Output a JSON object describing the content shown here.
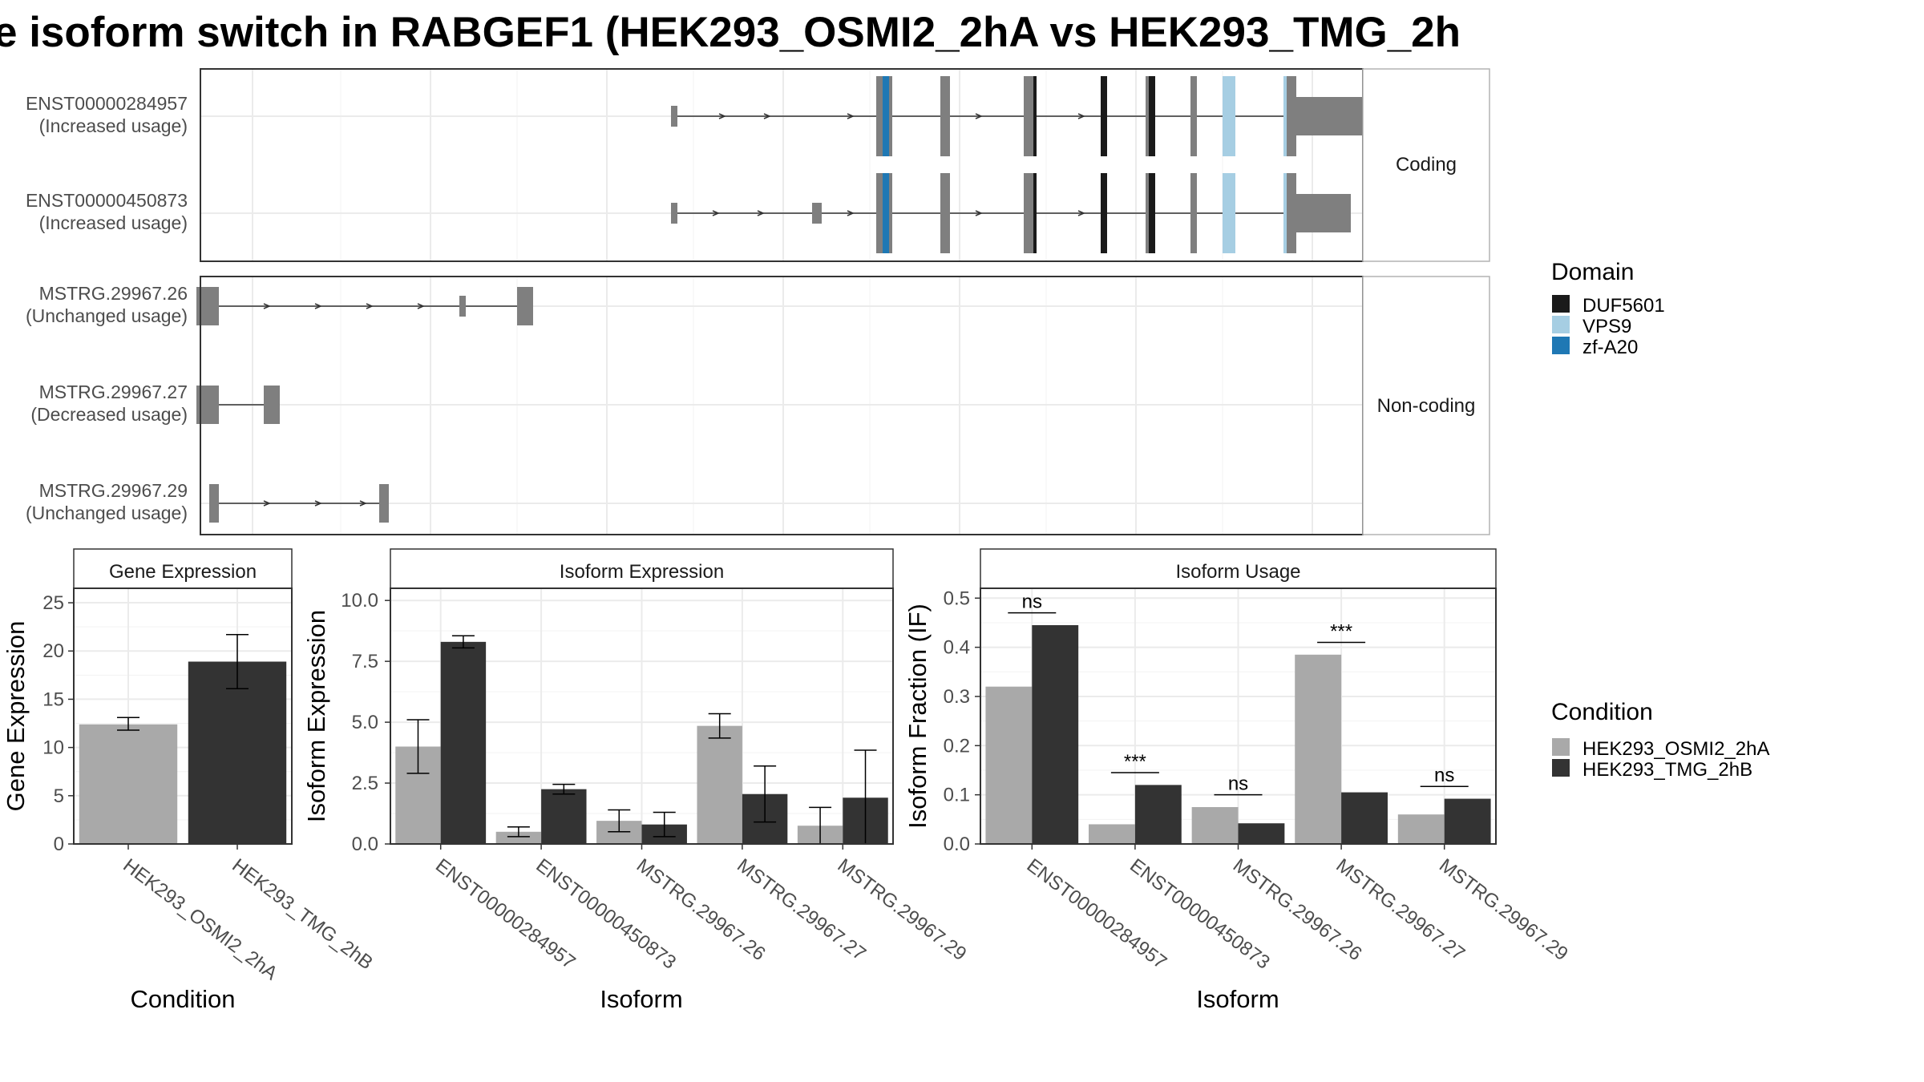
{
  "title": "e isoform switch in RABGEF1 (HEK293_OSMI2_2hA vs HEK293_TMG_2h",
  "colors": {
    "exon": "#7f7f7f",
    "DUF5601": "#1a1a1a",
    "VPS9": "#a6cee3",
    "zf-A20": "#1f78b4",
    "HEK293_OSMI2_2hA": "#a9a9a9",
    "HEK293_TMG_2hB": "#333333"
  },
  "structure": {
    "coding_label": "Coding",
    "noncoding_label": "Non-coding",
    "transcripts": [
      {
        "id": "ENST00000284957",
        "usage": "(Increased usage)",
        "group": "coding",
        "exons": [
          [
            0.0,
            0.01
          ],
          [
            0.32,
            0.345
          ],
          [
            0.42,
            0.435
          ],
          [
            0.55,
            0.565
          ],
          [
            0.67,
            0.68
          ],
          [
            0.74,
            0.755
          ],
          [
            0.81,
            0.82
          ],
          [
            0.955,
            0.975
          ],
          [
            0.975,
            1.09
          ]
        ],
        "exon_heights": [
          "s",
          "l",
          "l",
          "l",
          "l",
          "l",
          "l",
          "l",
          "m"
        ],
        "domains": [
          [
            0.33,
            0.34,
            "zf-A20"
          ],
          [
            0.565,
            0.57,
            "DUF5601"
          ],
          [
            0.67,
            0.68,
            "DUF5601"
          ],
          [
            0.745,
            0.755,
            "DUF5601"
          ],
          [
            0.86,
            0.88,
            "VPS9"
          ],
          [
            0.955,
            0.96,
            "VPS9"
          ]
        ],
        "arrows": [
          0.08,
          0.15,
          0.28,
          0.48,
          0.64
        ]
      },
      {
        "id": "ENST00000450873",
        "usage": "(Increased usage)",
        "group": "coding",
        "exons": [
          [
            0.0,
            0.01
          ],
          [
            0.22,
            0.235
          ],
          [
            0.32,
            0.345
          ],
          [
            0.42,
            0.435
          ],
          [
            0.55,
            0.565
          ],
          [
            0.67,
            0.68
          ],
          [
            0.74,
            0.755
          ],
          [
            0.81,
            0.82
          ],
          [
            0.955,
            0.975
          ],
          [
            0.975,
            1.06
          ]
        ],
        "exon_heights": [
          "s",
          "s",
          "l",
          "l",
          "l",
          "l",
          "l",
          "l",
          "l",
          "m"
        ],
        "domains": [
          [
            0.33,
            0.34,
            "zf-A20"
          ],
          [
            0.565,
            0.57,
            "DUF5601"
          ],
          [
            0.67,
            0.68,
            "DUF5601"
          ],
          [
            0.745,
            0.755,
            "DUF5601"
          ],
          [
            0.86,
            0.88,
            "VPS9"
          ],
          [
            0.955,
            0.96,
            "VPS9"
          ]
        ],
        "arrows": [
          0.07,
          0.14,
          0.28,
          0.48,
          0.64
        ]
      },
      {
        "id": "MSTRG.29967.26",
        "usage": "(Unchanged usage)",
        "group": "noncoding",
        "exons": [
          [
            -0.74,
            -0.705
          ],
          [
            -0.33,
            -0.32
          ],
          [
            -0.24,
            -0.215
          ]
        ],
        "exon_heights": [
          "m",
          "s",
          "m"
        ],
        "domains": [],
        "arrows": [
          -0.63,
          -0.55,
          -0.47,
          -0.39
        ]
      },
      {
        "id": "MSTRG.29967.27",
        "usage": "(Decreased usage)",
        "group": "noncoding",
        "exons": [
          [
            -0.74,
            -0.705
          ],
          [
            -0.635,
            -0.61
          ]
        ],
        "exon_heights": [
          "m",
          "m"
        ],
        "domains": [],
        "arrows": []
      },
      {
        "id": "MSTRG.29967.29",
        "usage": "(Unchanged usage)",
        "group": "noncoding",
        "exons": [
          [
            -0.72,
            -0.705
          ],
          [
            -0.455,
            -0.44
          ]
        ],
        "exon_heights": [
          "m",
          "m"
        ],
        "domains": [],
        "arrows": [
          -0.63,
          -0.55,
          -0.48
        ]
      }
    ]
  },
  "legend": {
    "domain_title": "Domain",
    "domains": [
      "DUF5601",
      "VPS9",
      "zf-A20"
    ],
    "condition_title": "Condition",
    "conditions": [
      "HEK293_OSMI2_2hA",
      "HEK293_TMG_2hB"
    ]
  },
  "chart_data": [
    {
      "type": "bar",
      "title": "Gene Expression",
      "xlabel": "Condition",
      "ylabel": "Gene Expression",
      "ylim": [
        0,
        26.5
      ],
      "yticks": [
        0,
        5,
        10,
        15,
        20,
        25
      ],
      "categories": [
        "HEK293_OSMI2_2hA",
        "HEK293_TMG_2hB"
      ],
      "series": [
        {
          "name": "HEK293_OSMI2_2hA",
          "values": [
            12.4,
            null
          ],
          "error": [
            [
              11.8,
              13.1
            ],
            null
          ]
        },
        {
          "name": "HEK293_TMG_2hB",
          "values": [
            null,
            18.9
          ],
          "error": [
            null,
            [
              16.1,
              21.7
            ]
          ]
        }
      ]
    },
    {
      "type": "bar",
      "title": "Isoform Expression",
      "xlabel": "Isoform",
      "ylabel": "Isoform Expression",
      "ylim": [
        0,
        10.5
      ],
      "yticks": [
        0.0,
        2.5,
        5.0,
        7.5,
        10.0
      ],
      "tick_labels": [
        "0.0",
        "2.5",
        "5.0",
        "7.5",
        "10.0"
      ],
      "categories": [
        "ENST00000284957",
        "ENST00000450873",
        "MSTRG.29967.26",
        "MSTRG.29967.27",
        "MSTRG.29967.29"
      ],
      "series": [
        {
          "name": "HEK293_OSMI2_2hA",
          "values": [
            4.0,
            0.5,
            0.95,
            4.85,
            0.75
          ],
          "error": [
            [
              2.9,
              5.1
            ],
            [
              0.3,
              0.7
            ],
            [
              0.5,
              1.4
            ],
            [
              4.35,
              5.35
            ],
            [
              0.0,
              1.5
            ]
          ]
        },
        {
          "name": "HEK293_TMG_2hB",
          "values": [
            8.3,
            2.25,
            0.8,
            2.05,
            1.9
          ],
          "error": [
            [
              8.05,
              8.55
            ],
            [
              2.05,
              2.45
            ],
            [
              0.3,
              1.3
            ],
            [
              0.9,
              3.2
            ],
            [
              0.0,
              3.85
            ]
          ]
        }
      ]
    },
    {
      "type": "bar",
      "title": "Isoform Usage",
      "xlabel": "Isoform",
      "ylabel": "Isoform Fraction (IF)",
      "ylim": [
        0,
        0.52
      ],
      "yticks": [
        0.0,
        0.1,
        0.2,
        0.3,
        0.4,
        0.5
      ],
      "tick_labels": [
        "0.0",
        "0.1",
        "0.2",
        "0.3",
        "0.4",
        "0.5"
      ],
      "categories": [
        "ENST00000284957",
        "ENST00000450873",
        "MSTRG.29967.26",
        "MSTRG.29967.27",
        "MSTRG.29967.29"
      ],
      "series": [
        {
          "name": "HEK293_OSMI2_2hA",
          "values": [
            0.32,
            0.04,
            0.075,
            0.385,
            0.06
          ]
        },
        {
          "name": "HEK293_TMG_2hB",
          "values": [
            0.445,
            0.12,
            0.042,
            0.105,
            0.092
          ]
        }
      ],
      "significance": [
        {
          "category": "ENST00000284957",
          "label": "ns",
          "y": 0.47
        },
        {
          "category": "ENST00000450873",
          "label": "***",
          "y": 0.145
        },
        {
          "category": "MSTRG.29967.26",
          "label": "ns",
          "y": 0.1
        },
        {
          "category": "MSTRG.29967.27",
          "label": "***",
          "y": 0.41
        },
        {
          "category": "MSTRG.29967.29",
          "label": "ns",
          "y": 0.117
        }
      ]
    }
  ]
}
